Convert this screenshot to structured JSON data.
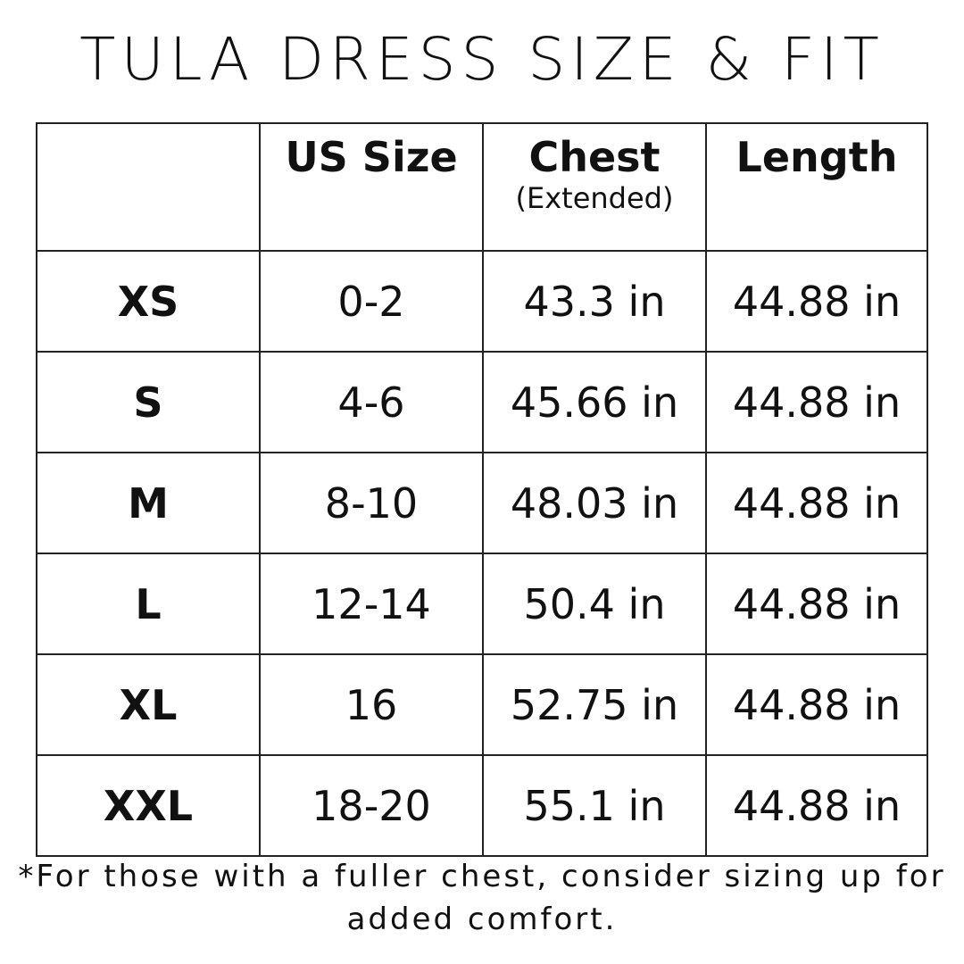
{
  "title": "TULA DRESS SIZE & FIT",
  "headers": {
    "blank": "",
    "us": "US Size",
    "chest": "Chest",
    "chest_sub": "(Extended)",
    "length": "Length"
  },
  "rows": [
    {
      "size": "XS",
      "us": "0-2",
      "chest": "43.3 in",
      "length": "44.88 in"
    },
    {
      "size": "S",
      "us": "4-6",
      "chest": "45.66 in",
      "length": "44.88 in"
    },
    {
      "size": "M",
      "us": "8-10",
      "chest": "48.03 in",
      "length": "44.88 in"
    },
    {
      "size": "L",
      "us": "12-14",
      "chest": "50.4 in",
      "length": "44.88 in"
    },
    {
      "size": "XL",
      "us": "16",
      "chest": "52.75 in",
      "length": "44.88 in"
    },
    {
      "size": "XXL",
      "us": "18-20",
      "chest": "55.1 in",
      "length": "44.88 in"
    }
  ],
  "note": "*For those with a fuller chest, consider sizing up for added comfort."
}
